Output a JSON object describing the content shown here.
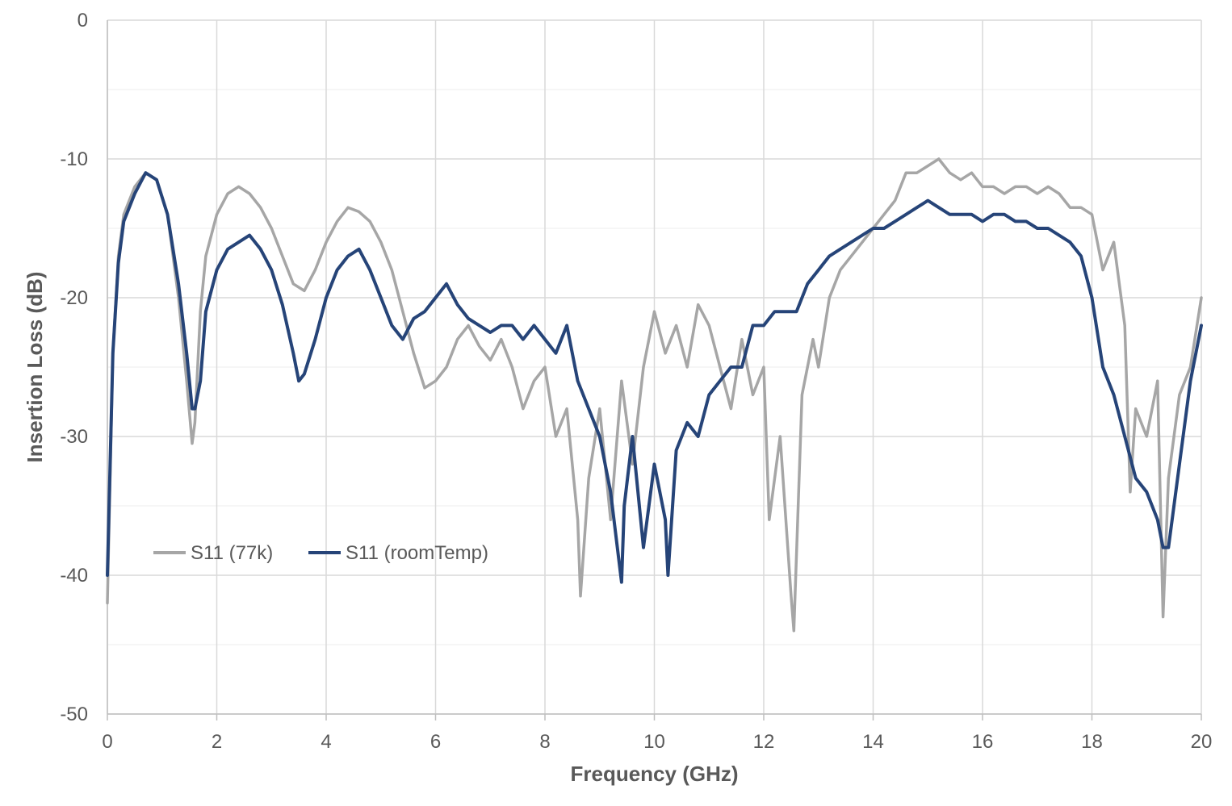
{
  "chart_data": {
    "type": "line",
    "title": "",
    "xlabel": "Frequency (GHz)",
    "ylabel": "Insertion Loss (dB)",
    "xlim": [
      0,
      20
    ],
    "ylim": [
      -50,
      0
    ],
    "xticks": [
      0,
      2,
      4,
      6,
      8,
      10,
      12,
      14,
      16,
      18,
      20
    ],
    "yticks": [
      0,
      -10,
      -20,
      -30,
      -40,
      -50
    ],
    "grid": true,
    "legend_position": "lower-left",
    "series": [
      {
        "name": "S11 (77k)",
        "color": "#a6a6a6",
        "x": [
          0,
          0.1,
          0.2,
          0.3,
          0.5,
          0.7,
          0.9,
          1.1,
          1.3,
          1.45,
          1.55,
          1.6,
          1.7,
          1.8,
          2.0,
          2.2,
          2.4,
          2.6,
          2.8,
          3.0,
          3.2,
          3.4,
          3.6,
          3.8,
          4.0,
          4.2,
          4.4,
          4.6,
          4.8,
          5.0,
          5.2,
          5.4,
          5.6,
          5.8,
          6.0,
          6.2,
          6.4,
          6.6,
          6.8,
          7.0,
          7.2,
          7.4,
          7.6,
          7.8,
          8.0,
          8.2,
          8.4,
          8.6,
          8.65,
          8.8,
          9.0,
          9.2,
          9.4,
          9.6,
          9.8,
          10.0,
          10.2,
          10.4,
          10.6,
          10.8,
          11.0,
          11.2,
          11.4,
          11.6,
          11.8,
          12.0,
          12.1,
          12.3,
          12.5,
          12.55,
          12.7,
          12.9,
          13.0,
          13.2,
          13.4,
          13.6,
          13.8,
          14.0,
          14.2,
          14.4,
          14.6,
          14.8,
          15.0,
          15.2,
          15.4,
          15.6,
          15.8,
          16.0,
          16.2,
          16.4,
          16.6,
          16.8,
          17.0,
          17.2,
          17.4,
          17.6,
          17.8,
          18.0,
          18.2,
          18.4,
          18.6,
          18.7,
          18.8,
          19.0,
          19.2,
          19.3,
          19.4,
          19.6,
          19.8,
          20.0
        ],
        "y": [
          -42,
          -24,
          -17,
          -14,
          -12,
          -11,
          -11.5,
          -14,
          -20,
          -26,
          -30.5,
          -29,
          -21,
          -17,
          -14,
          -12.5,
          -12,
          -12.5,
          -13.5,
          -15,
          -17,
          -19,
          -19.5,
          -18,
          -16,
          -14.5,
          -13.5,
          -13.8,
          -14.5,
          -16,
          -18,
          -21,
          -24,
          -26.5,
          -26,
          -25,
          -23,
          -22,
          -23.5,
          -24.5,
          -23,
          -25,
          -28,
          -26,
          -25,
          -30,
          -28,
          -36,
          -41.5,
          -33,
          -28,
          -36,
          -26,
          -32,
          -25,
          -21,
          -24,
          -22,
          -25,
          -20.5,
          -22,
          -25,
          -28,
          -23,
          -27,
          -25,
          -36,
          -30,
          -41.5,
          -44,
          -27,
          -23,
          -25,
          -20,
          -18,
          -17,
          -16,
          -15,
          -14,
          -13,
          -11,
          -11,
          -10.5,
          -10,
          -11,
          -11.5,
          -11,
          -12,
          -12,
          -12.5,
          -12,
          -12,
          -12.5,
          -12,
          -12.5,
          -13.5,
          -13.5,
          -14,
          -18,
          -16,
          -22,
          -34,
          -28,
          -30,
          -26,
          -43,
          -33,
          -27,
          -25,
          -20
        ]
      },
      {
        "name": "S11 (roomTemp)",
        "color": "#264478",
        "x": [
          0,
          0.1,
          0.2,
          0.3,
          0.5,
          0.7,
          0.9,
          1.1,
          1.3,
          1.45,
          1.55,
          1.6,
          1.7,
          1.8,
          2.0,
          2.2,
          2.4,
          2.6,
          2.8,
          3.0,
          3.2,
          3.4,
          3.5,
          3.6,
          3.8,
          4.0,
          4.2,
          4.4,
          4.6,
          4.8,
          5.0,
          5.2,
          5.4,
          5.6,
          5.8,
          6.0,
          6.2,
          6.4,
          6.6,
          6.8,
          7.0,
          7.2,
          7.4,
          7.6,
          7.8,
          8.0,
          8.2,
          8.4,
          8.6,
          8.8,
          9.0,
          9.2,
          9.4,
          9.45,
          9.6,
          9.8,
          10.0,
          10.2,
          10.25,
          10.4,
          10.6,
          10.8,
          11.0,
          11.2,
          11.4,
          11.6,
          11.8,
          12.0,
          12.2,
          12.4,
          12.6,
          12.8,
          13.0,
          13.2,
          13.4,
          13.6,
          13.8,
          14.0,
          14.2,
          14.4,
          14.6,
          14.8,
          15.0,
          15.2,
          15.4,
          15.6,
          15.8,
          16.0,
          16.2,
          16.4,
          16.6,
          16.8,
          17.0,
          17.2,
          17.4,
          17.6,
          17.8,
          18.0,
          18.2,
          18.4,
          18.6,
          18.8,
          19.0,
          19.2,
          19.3,
          19.4,
          19.6,
          19.8,
          20.0
        ],
        "y": [
          -40,
          -24,
          -17.5,
          -14.5,
          -12.5,
          -11,
          -11.5,
          -14,
          -19,
          -24,
          -28,
          -28,
          -26,
          -21,
          -18,
          -16.5,
          -16,
          -15.5,
          -16.5,
          -18,
          -20.5,
          -24,
          -26,
          -25.5,
          -23,
          -20,
          -18,
          -17,
          -16.5,
          -18,
          -20,
          -22,
          -23,
          -21.5,
          -21,
          -20,
          -19,
          -20.5,
          -21.5,
          -22,
          -22.5,
          -22,
          -22,
          -23,
          -22,
          -23,
          -24,
          -22,
          -26,
          -28,
          -30,
          -34,
          -40.5,
          -35,
          -30,
          -38,
          -32,
          -36,
          -40,
          -31,
          -29,
          -30,
          -27,
          -26,
          -25,
          -25,
          -22,
          -22,
          -21,
          -21,
          -21,
          -19,
          -18,
          -17,
          -16.5,
          -16,
          -15.5,
          -15,
          -15,
          -14.5,
          -14,
          -13.5,
          -13,
          -13.5,
          -14,
          -14,
          -14,
          -14.5,
          -14,
          -14,
          -14.5,
          -14.5,
          -15,
          -15,
          -15.5,
          -16,
          -17,
          -20,
          -25,
          -27,
          -30,
          -33,
          -34,
          -36,
          -38,
          -38,
          -32,
          -26,
          -22
        ]
      }
    ]
  }
}
